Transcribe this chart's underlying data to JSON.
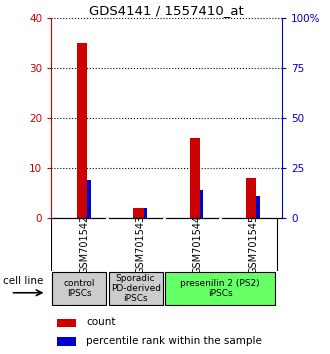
{
  "title": "GDS4141 / 1557410_at",
  "samples": [
    "GSM701542",
    "GSM701543",
    "GSM701544",
    "GSM701545"
  ],
  "count_values": [
    35,
    2,
    16,
    8
  ],
  "percentile_values": [
    19,
    5,
    14,
    11
  ],
  "ylim_left": [
    0,
    40
  ],
  "ylim_right": [
    0,
    100
  ],
  "yticks_left": [
    0,
    10,
    20,
    30,
    40
  ],
  "yticks_right": [
    0,
    25,
    50,
    75,
    100
  ],
  "ytick_labels_left": [
    "0",
    "10",
    "20",
    "30",
    "40"
  ],
  "ytick_labels_right": [
    "0",
    "25",
    "50",
    "75",
    "100%"
  ],
  "count_color": "#cc0000",
  "percentile_color": "#0000cc",
  "cell_line_groups": [
    {
      "label": "control\nIPSCs",
      "color": "#cccccc",
      "cols": [
        0,
        1
      ]
    },
    {
      "label": "Sporadic\nPD-derived\niPSCs",
      "color": "#cccccc",
      "cols": [
        1,
        2
      ]
    },
    {
      "label": "presenilin 2 (PS2)\niPSCs",
      "color": "#66ff66",
      "cols": [
        2,
        4
      ]
    }
  ],
  "legend_count_label": "count",
  "legend_percentile_label": "percentile rank within the sample",
  "cell_line_label": "cell line",
  "sample_bg_color": "#cccccc",
  "background_color": "#ffffff"
}
